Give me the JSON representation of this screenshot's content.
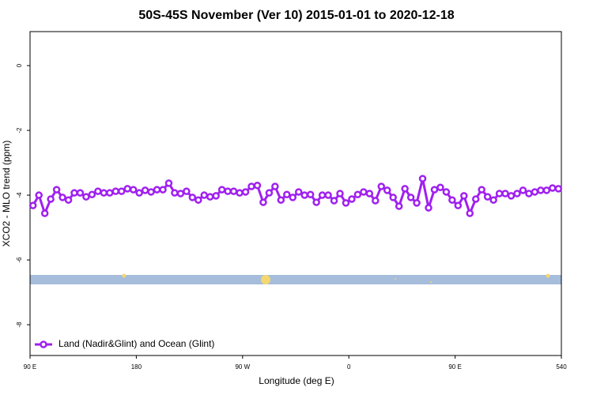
{
  "chart_data": {
    "type": "line",
    "title": "50S-45S November (Ver 10)   2015-01-01 to 2020-12-18",
    "xlabel": "Longitude (deg E)",
    "ylabel": "XCO2 - MLO trend (ppm)",
    "x": [
      92.5,
      97.5,
      102.5,
      107.5,
      112.5,
      117.5,
      122.5,
      127.5,
      132.5,
      137.5,
      142.5,
      147.5,
      152.5,
      157.5,
      162.5,
      167.5,
      172.5,
      177.5,
      182.5,
      187.5,
      192.5,
      197.5,
      202.5,
      207.5,
      212.5,
      217.5,
      222.5,
      227.5,
      232.5,
      237.5,
      242.5,
      247.5,
      252.5,
      257.5,
      262.5,
      267.5,
      272.5,
      277.5,
      282.5,
      287.5,
      292.5,
      297.5,
      302.5,
      307.5,
      312.5,
      317.5,
      322.5,
      327.5,
      332.5,
      337.5,
      342.5,
      347.5,
      352.5,
      357.5,
      362.5,
      367.5,
      372.5,
      377.5,
      382.5,
      387.5,
      392.5,
      397.5,
      402.5,
      407.5,
      412.5,
      417.5,
      422.5,
      427.5,
      432.5,
      437.5,
      442.5,
      447.5,
      452.5,
      457.5,
      462.5,
      467.5,
      472.5,
      477.5,
      482.5,
      487.5,
      492.5,
      497.5,
      502.5,
      507.5,
      512.5,
      517.5,
      522.5,
      527.5,
      532.5,
      537.5
    ],
    "series": [
      {
        "name": "Land (Nadir&Glint) and Ocean (Glint)",
        "color": "#a020f0",
        "values": [
          -4.32,
          -4.0,
          -4.56,
          -4.12,
          -3.83,
          -4.07,
          -4.15,
          -3.93,
          -3.93,
          -4.05,
          -3.98,
          -3.88,
          -3.93,
          -3.93,
          -3.88,
          -3.88,
          -3.8,
          -3.83,
          -3.93,
          -3.85,
          -3.9,
          -3.83,
          -3.83,
          -3.63,
          -3.93,
          -3.95,
          -3.88,
          -4.07,
          -4.15,
          -4.0,
          -4.05,
          -4.02,
          -3.83,
          -3.88,
          -3.88,
          -3.93,
          -3.9,
          -3.73,
          -3.7,
          -4.22,
          -3.93,
          -3.73,
          -4.15,
          -3.98,
          -4.07,
          -3.9,
          -4.0,
          -3.98,
          -4.22,
          -4.0,
          -4.0,
          -4.17,
          -3.95,
          -4.24,
          -4.12,
          -3.98,
          -3.9,
          -3.95,
          -4.17,
          -3.73,
          -3.85,
          -4.07,
          -4.34,
          -3.8,
          -4.07,
          -4.24,
          -3.49,
          -4.39,
          -3.83,
          -3.76,
          -3.9,
          -4.15,
          -4.32,
          -4.02,
          -4.56,
          -4.12,
          -3.83,
          -4.05,
          -4.15,
          -3.95,
          -3.95,
          -4.02,
          -3.95,
          -3.85,
          -3.95,
          -3.9,
          -3.85,
          -3.85,
          -3.78,
          -3.8
        ]
      }
    ],
    "xlim": [
      90,
      540
    ],
    "xticks": [
      {
        "value": 90,
        "label": "90 E"
      },
      180,
      {
        "value": 270,
        "label": "90 W"
      },
      {
        "value": 360,
        "label": "0"
      },
      {
        "value": 450,
        "label": "90 E"
      },
      540
    ],
    "ylim": [
      -8.95,
      1.05
    ],
    "yticks": [
      0,
      -2,
      -4,
      -6,
      -8
    ],
    "legend": "bottom-left"
  }
}
